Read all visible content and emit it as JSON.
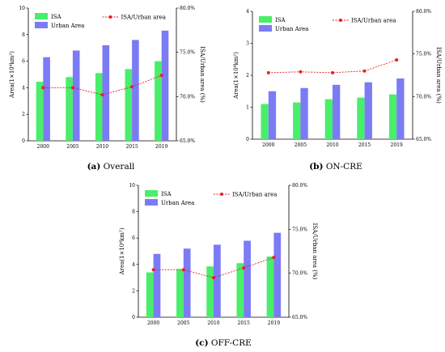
{
  "colors": {
    "isa": "#49EE6A",
    "urban": "#7B7BF5",
    "ratio": "#E52222",
    "axis": "#000000"
  },
  "chart_data": [
    {
      "id": "a",
      "type": "bar",
      "caption_label": "(a)",
      "caption_text": "Overall",
      "categories": [
        "2000",
        "2005",
        "2010",
        "2015",
        "2019"
      ],
      "series": [
        {
          "name": "ISA",
          "values": [
            4.45,
            4.8,
            5.1,
            5.4,
            6.0
          ]
        },
        {
          "name": "Urban Area",
          "values": [
            6.3,
            6.8,
            7.2,
            7.6,
            8.3
          ]
        }
      ],
      "line_series": {
        "name": "ISA/Urban area",
        "values": [
          71.0,
          71.0,
          70.2,
          71.1,
          72.4
        ]
      },
      "ylabel": "Area(1×10⁴km²)",
      "ylabel_right": "ISA/Urban area (%)",
      "ylim": [
        0,
        10
      ],
      "yticks": [
        "0",
        "2",
        "4",
        "6",
        "8",
        "10"
      ],
      "ylim_right": [
        65,
        80
      ],
      "yticks_right": [
        "65.0%",
        "70.0%",
        "75.0%",
        "80.0%"
      ],
      "legend_bar": [
        "ISA",
        "Urban Area"
      ],
      "legend_line": "ISA/Urban area",
      "legend_position": "top"
    },
    {
      "id": "b",
      "type": "bar",
      "caption_label": "(b)",
      "caption_text": "ON-CRE",
      "categories": [
        "2000",
        "2005",
        "2010",
        "2015",
        "2019"
      ],
      "series": [
        {
          "name": "ISA",
          "values": [
            1.1,
            1.15,
            1.25,
            1.3,
            1.4
          ]
        },
        {
          "name": "Urban Area",
          "values": [
            1.5,
            1.6,
            1.7,
            1.78,
            1.9
          ]
        }
      ],
      "line_series": {
        "name": "ISA/Urban area",
        "values": [
          72.8,
          72.9,
          72.8,
          73.0,
          74.3
        ]
      },
      "ylabel": "Area(1×10⁴km²)",
      "ylabel_right": "ISA/Urban area (%)",
      "ylim": [
        0,
        4
      ],
      "yticks": [
        "0",
        "1",
        "2",
        "3",
        "4"
      ],
      "ylim_right": [
        65,
        80
      ],
      "yticks_right": [
        "65.0%",
        "70.0%",
        "75.0%",
        "80.0%"
      ],
      "legend_bar": [
        "ISA",
        "Urban Area"
      ],
      "legend_line": "ISA/Urban area",
      "legend_position": "top"
    },
    {
      "id": "c",
      "type": "bar",
      "caption_label": "(c)",
      "caption_text": "OFF-CRE",
      "categories": [
        "2000",
        "2005",
        "2010",
        "2015",
        "2019"
      ],
      "series": [
        {
          "name": "ISA",
          "values": [
            3.4,
            3.65,
            3.85,
            4.1,
            4.6
          ]
        },
        {
          "name": "Urban Area",
          "values": [
            4.8,
            5.2,
            5.5,
            5.8,
            6.4
          ]
        }
      ],
      "line_series": {
        "name": "ISA/Urban area",
        "values": [
          70.4,
          70.4,
          69.5,
          70.6,
          71.8
        ]
      },
      "ylabel": "Area(1×10⁴km²)",
      "ylabel_right": "ISA/Urban area (%)",
      "ylim": [
        0,
        10
      ],
      "yticks": [
        "0",
        "2",
        "4",
        "6",
        "8",
        "10"
      ],
      "ylim_right": [
        65,
        80
      ],
      "yticks_right": [
        "65.0%",
        "70.0%",
        "75.0%",
        "80.0%"
      ],
      "legend_bar": [
        "ISA",
        "Urban Area"
      ],
      "legend_line": "ISA/Urban area",
      "legend_position": "top"
    }
  ]
}
